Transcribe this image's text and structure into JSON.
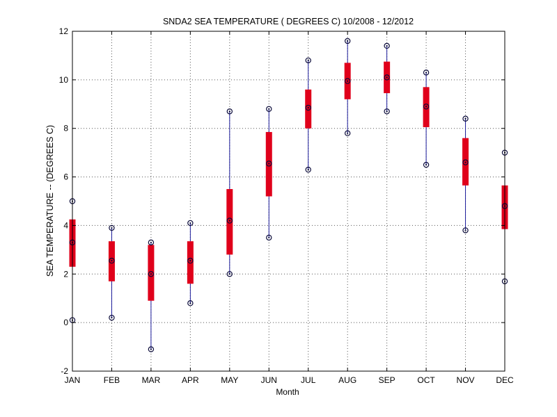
{
  "chart_data": {
    "type": "boxplot",
    "title": "SNDA2  SEA TEMPERATURE ( DEGREES C) 10/2008 - 12/2012",
    "xlabel": "Month",
    "ylabel": "SEA TEMPERATURE -- (DEGREES C)",
    "ylim": [
      -2,
      12
    ],
    "yticks": [
      -2,
      0,
      2,
      4,
      6,
      8,
      10,
      12
    ],
    "grid": true,
    "categories": [
      "JAN",
      "FEB",
      "MAR",
      "APR",
      "MAY",
      "JUN",
      "JUL",
      "AUG",
      "SEP",
      "OCT",
      "NOV",
      "DEC"
    ],
    "series": [
      {
        "name": "min",
        "values": [
          0.1,
          0.2,
          -1.1,
          0.8,
          2.0,
          3.5,
          6.3,
          7.8,
          8.7,
          6.5,
          3.8,
          1.7
        ]
      },
      {
        "name": "q1",
        "values": [
          2.3,
          1.7,
          0.9,
          1.6,
          2.8,
          5.2,
          8.0,
          9.2,
          9.45,
          8.05,
          5.65,
          3.85
        ]
      },
      {
        "name": "median",
        "values": [
          3.3,
          2.55,
          2.0,
          2.55,
          4.2,
          6.55,
          8.85,
          9.95,
          10.1,
          8.9,
          6.6,
          4.8
        ]
      },
      {
        "name": "q3",
        "values": [
          4.25,
          3.35,
          3.2,
          3.35,
          5.5,
          7.85,
          9.6,
          10.7,
          10.75,
          9.7,
          7.6,
          5.65
        ]
      },
      {
        "name": "max",
        "values": [
          5.0,
          3.9,
          3.3,
          4.1,
          8.7,
          8.8,
          10.8,
          11.6,
          11.4,
          10.3,
          8.4,
          7.0
        ]
      }
    ],
    "colors": {
      "box": "#e0001b",
      "whisker": "#1a1a9a",
      "marker": "#0b0b3a",
      "grid": "#555555",
      "axis": "#000000"
    }
  }
}
